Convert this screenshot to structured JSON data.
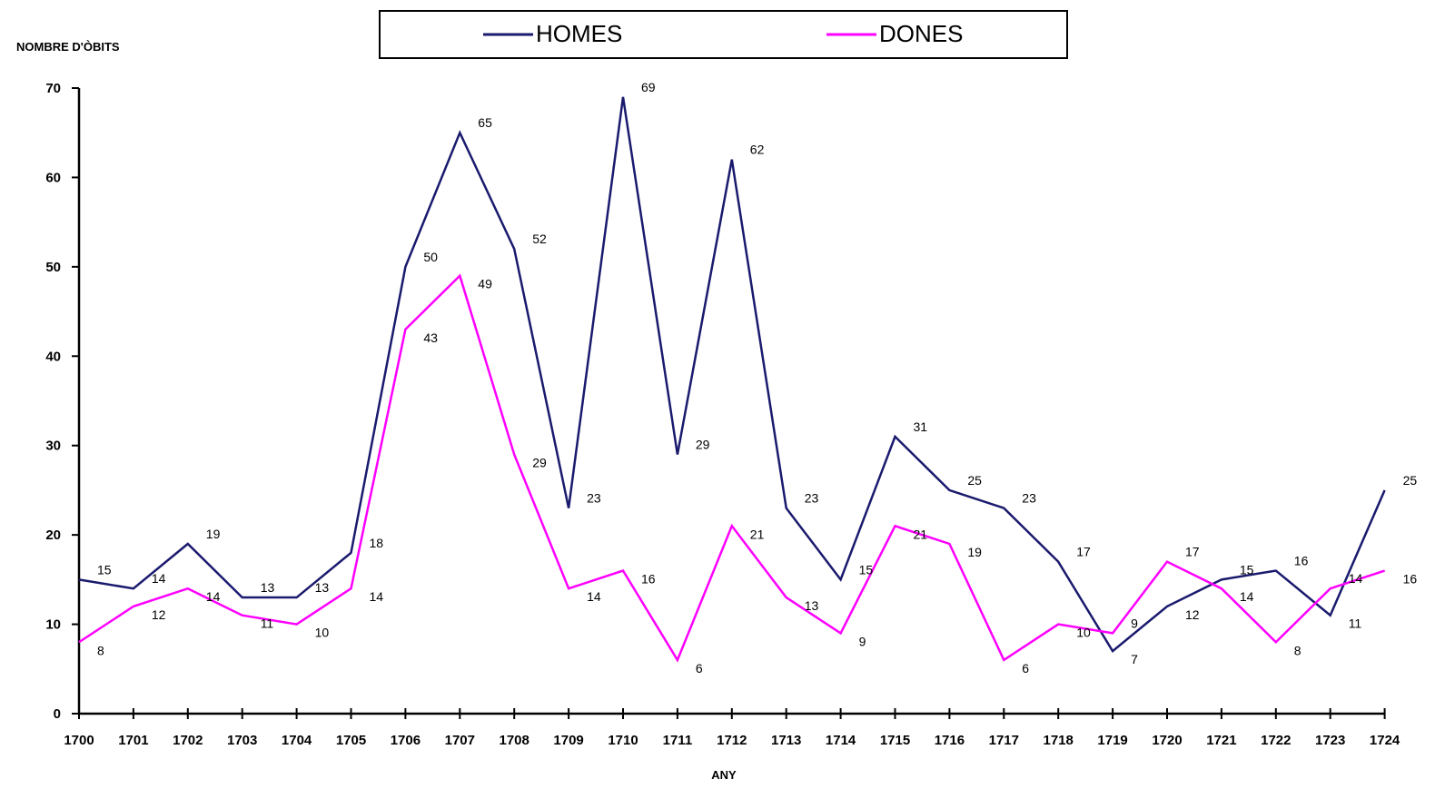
{
  "chart_data": {
    "type": "line",
    "title": "",
    "xlabel": "ANY",
    "ylabel": "NOMBRE D'ÒBITS",
    "ylim": [
      0,
      70
    ],
    "yticks": [
      0,
      10,
      20,
      30,
      40,
      50,
      60,
      70
    ],
    "grid": false,
    "legend_position": "top-center",
    "categories": [
      "1700",
      "1701",
      "1702",
      "1703",
      "1704",
      "1705",
      "1706",
      "1707",
      "1708",
      "1709",
      "1710",
      "1711",
      "1712",
      "1713",
      "1714",
      "1715",
      "1716",
      "1717",
      "1718",
      "1719",
      "1720",
      "1721",
      "1722",
      "1723",
      "1724"
    ],
    "series": [
      {
        "name": "HOMES",
        "color": "#1a1a6e",
        "values": [
          15,
          14,
          19,
          13,
          13,
          18,
          50,
          65,
          52,
          23,
          69,
          29,
          62,
          23,
          15,
          31,
          25,
          23,
          17,
          7,
          12,
          15,
          16,
          11,
          25
        ]
      },
      {
        "name": "DONES",
        "color": "#ff00ff",
        "values": [
          8,
          12,
          14,
          11,
          10,
          14,
          43,
          49,
          29,
          14,
          16,
          6,
          21,
          13,
          9,
          21,
          19,
          6,
          10,
          9,
          17,
          14,
          8,
          14,
          16
        ]
      }
    ]
  }
}
